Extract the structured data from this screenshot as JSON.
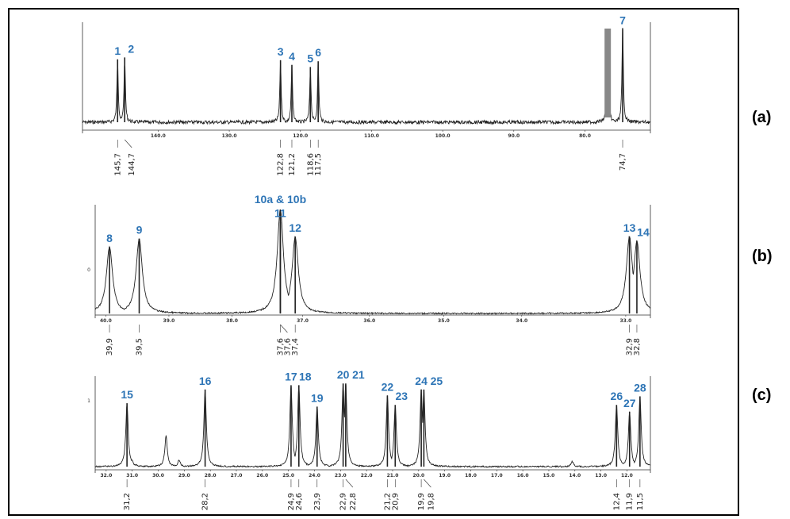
{
  "colors": {
    "peak_label": "#2e75b6",
    "trace": "#222222",
    "axis": "#333333"
  },
  "chart_data": [
    {
      "type": "line",
      "panel_label": "(a)",
      "xlim": [
        150.3,
        70.8
      ],
      "x_ticks": [
        "140.0",
        "130.0",
        "120.0",
        "110.0",
        "100.0",
        "90.0",
        "80.0"
      ],
      "x_tick_values": [
        140,
        130,
        120,
        110,
        100,
        90,
        80
      ],
      "peaks": [
        {
          "label": "1",
          "x": 145.7,
          "height": 0.66,
          "value": "145,7"
        },
        {
          "label": "2",
          "x": 144.7,
          "height": 0.68,
          "value": "144,7"
        },
        {
          "label": "3",
          "x": 122.8,
          "height": 0.65,
          "value": "122,8"
        },
        {
          "label": "4",
          "x": 121.2,
          "height": 0.6,
          "value": "121,2"
        },
        {
          "label": "5",
          "x": 118.6,
          "height": 0.58,
          "value": "118,6"
        },
        {
          "label": "6",
          "x": 117.5,
          "height": 0.64,
          "value": "117,5"
        },
        {
          "label": "7",
          "x": 74.7,
          "height": 0.98,
          "value": "74,7"
        }
      ],
      "off_scale_peak": {
        "x": 76.8,
        "height": 1.0
      }
    },
    {
      "type": "line",
      "panel_label": "(b)",
      "xlim": [
        40.05,
        32.65
      ],
      "x_ticks": [
        "40.0",
        "39.0",
        "38.0",
        "37.0",
        "36.0",
        "35.0",
        "34.0",
        "33.0"
      ],
      "x_tick_values": [
        39.95,
        39.1,
        38.25,
        37.3,
        36.4,
        35.4,
        34.35,
        32.95
      ],
      "peaks": [
        {
          "label": "8",
          "x": 39.9,
          "height": 0.64,
          "value": "39,9"
        },
        {
          "label": "9",
          "x": 39.5,
          "height": 0.72,
          "value": "39,5"
        },
        {
          "label": "10a & 10b",
          "x": 37.6,
          "height": 1.0,
          "value": "37,6"
        },
        {
          "label": "11",
          "x": 37.6,
          "height": 0.88,
          "value": "37,6"
        },
        {
          "label": "12",
          "x": 37.4,
          "height": 0.74,
          "value": "37,4"
        },
        {
          "label": "13",
          "x": 32.9,
          "height": 0.74,
          "value": "32,9"
        },
        {
          "label": "14",
          "x": 32.8,
          "height": 0.7,
          "value": "32,8"
        }
      ],
      "y_tick_label": "0"
    },
    {
      "type": "line",
      "panel_label": "(c)",
      "xlim": [
        32.3,
        11.1
      ],
      "x_ticks": [
        "32.0",
        "31.0",
        "30.0",
        "29.0",
        "28.0",
        "27.0",
        "26.0",
        "25.0",
        "24.0",
        "23.0",
        "22.0",
        "21.0",
        "20.0",
        "19.0",
        "18.0",
        "17.0",
        "16.0",
        "15.0",
        "14.0",
        "13.0",
        "12.0"
      ],
      "x_tick_values": [
        32,
        31,
        30,
        29,
        28,
        27,
        26,
        25,
        24,
        23,
        22,
        21,
        20,
        19,
        18,
        17,
        16,
        15,
        14,
        13,
        12
      ],
      "peaks": [
        {
          "label": "15",
          "x": 31.2,
          "height": 0.74,
          "value": "31,2"
        },
        {
          "label": "16",
          "x": 28.2,
          "height": 0.9,
          "value": "28,2"
        },
        {
          "label": "17",
          "x": 24.9,
          "height": 0.95,
          "value": "24,9"
        },
        {
          "label": "18",
          "x": 24.6,
          "height": 0.95,
          "value": "24,6"
        },
        {
          "label": "19",
          "x": 23.9,
          "height": 0.7,
          "value": "23,9"
        },
        {
          "label": "20",
          "x": 22.9,
          "height": 0.97,
          "value": "22,9"
        },
        {
          "label": "21",
          "x": 22.8,
          "height": 0.97,
          "value": "22,8"
        },
        {
          "label": "22",
          "x": 21.2,
          "height": 0.83,
          "value": "21,2"
        },
        {
          "label": "23",
          "x": 20.9,
          "height": 0.72,
          "value": "20,9"
        },
        {
          "label": "24",
          "x": 19.9,
          "height": 0.9,
          "value": "19,9"
        },
        {
          "label": "25",
          "x": 19.8,
          "height": 0.9,
          "value": "19,8"
        },
        {
          "label": "26",
          "x": 12.4,
          "height": 0.72,
          "value": "12,4"
        },
        {
          "label": "27",
          "x": 11.9,
          "height": 0.64,
          "value": "11,9"
        },
        {
          "label": "28",
          "x": 11.5,
          "height": 0.82,
          "value": "11,5"
        }
      ],
      "minor_peaks": [
        {
          "x": 29.7,
          "height": 0.36
        },
        {
          "x": 29.2,
          "height": 0.08
        },
        {
          "x": 31.0,
          "height": 0.08
        },
        {
          "x": 14.1,
          "height": 0.06
        }
      ],
      "y_tick_label": "1"
    }
  ]
}
